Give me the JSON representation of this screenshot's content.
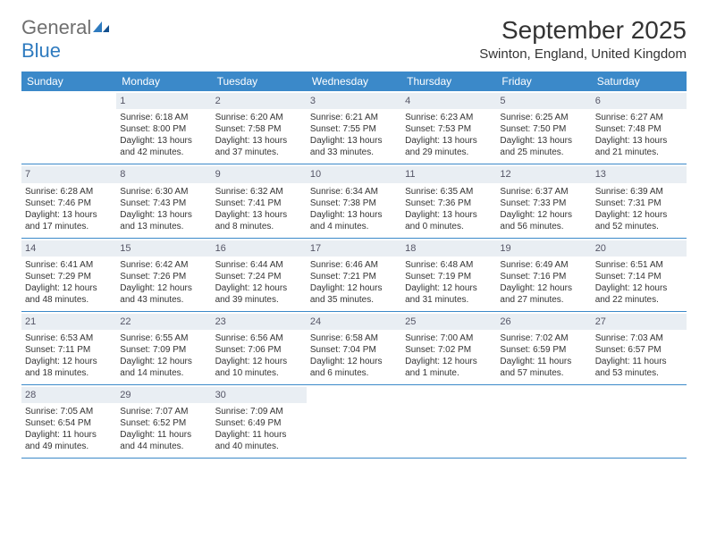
{
  "logo": {
    "general": "General",
    "blue": "Blue"
  },
  "title": "September 2025",
  "location": "Swinton, England, United Kingdom",
  "colors": {
    "header_bg": "#3b89c9",
    "header_text": "#ffffff",
    "daynum_bg": "#e9eef3",
    "body_text": "#333333",
    "logo_gray": "#6f6f6f",
    "logo_blue": "#2f7bbf",
    "border": "#3b89c9"
  },
  "day_headers": [
    "Sunday",
    "Monday",
    "Tuesday",
    "Wednesday",
    "Thursday",
    "Friday",
    "Saturday"
  ],
  "weeks": [
    [
      {
        "empty": true
      },
      {
        "num": "1",
        "sunrise": "Sunrise: 6:18 AM",
        "sunset": "Sunset: 8:00 PM",
        "daylight1": "Daylight: 13 hours",
        "daylight2": "and 42 minutes."
      },
      {
        "num": "2",
        "sunrise": "Sunrise: 6:20 AM",
        "sunset": "Sunset: 7:58 PM",
        "daylight1": "Daylight: 13 hours",
        "daylight2": "and 37 minutes."
      },
      {
        "num": "3",
        "sunrise": "Sunrise: 6:21 AM",
        "sunset": "Sunset: 7:55 PM",
        "daylight1": "Daylight: 13 hours",
        "daylight2": "and 33 minutes."
      },
      {
        "num": "4",
        "sunrise": "Sunrise: 6:23 AM",
        "sunset": "Sunset: 7:53 PM",
        "daylight1": "Daylight: 13 hours",
        "daylight2": "and 29 minutes."
      },
      {
        "num": "5",
        "sunrise": "Sunrise: 6:25 AM",
        "sunset": "Sunset: 7:50 PM",
        "daylight1": "Daylight: 13 hours",
        "daylight2": "and 25 minutes."
      },
      {
        "num": "6",
        "sunrise": "Sunrise: 6:27 AM",
        "sunset": "Sunset: 7:48 PM",
        "daylight1": "Daylight: 13 hours",
        "daylight2": "and 21 minutes."
      }
    ],
    [
      {
        "num": "7",
        "sunrise": "Sunrise: 6:28 AM",
        "sunset": "Sunset: 7:46 PM",
        "daylight1": "Daylight: 13 hours",
        "daylight2": "and 17 minutes."
      },
      {
        "num": "8",
        "sunrise": "Sunrise: 6:30 AM",
        "sunset": "Sunset: 7:43 PM",
        "daylight1": "Daylight: 13 hours",
        "daylight2": "and 13 minutes."
      },
      {
        "num": "9",
        "sunrise": "Sunrise: 6:32 AM",
        "sunset": "Sunset: 7:41 PM",
        "daylight1": "Daylight: 13 hours",
        "daylight2": "and 8 minutes."
      },
      {
        "num": "10",
        "sunrise": "Sunrise: 6:34 AM",
        "sunset": "Sunset: 7:38 PM",
        "daylight1": "Daylight: 13 hours",
        "daylight2": "and 4 minutes."
      },
      {
        "num": "11",
        "sunrise": "Sunrise: 6:35 AM",
        "sunset": "Sunset: 7:36 PM",
        "daylight1": "Daylight: 13 hours",
        "daylight2": "and 0 minutes."
      },
      {
        "num": "12",
        "sunrise": "Sunrise: 6:37 AM",
        "sunset": "Sunset: 7:33 PM",
        "daylight1": "Daylight: 12 hours",
        "daylight2": "and 56 minutes."
      },
      {
        "num": "13",
        "sunrise": "Sunrise: 6:39 AM",
        "sunset": "Sunset: 7:31 PM",
        "daylight1": "Daylight: 12 hours",
        "daylight2": "and 52 minutes."
      }
    ],
    [
      {
        "num": "14",
        "sunrise": "Sunrise: 6:41 AM",
        "sunset": "Sunset: 7:29 PM",
        "daylight1": "Daylight: 12 hours",
        "daylight2": "and 48 minutes."
      },
      {
        "num": "15",
        "sunrise": "Sunrise: 6:42 AM",
        "sunset": "Sunset: 7:26 PM",
        "daylight1": "Daylight: 12 hours",
        "daylight2": "and 43 minutes."
      },
      {
        "num": "16",
        "sunrise": "Sunrise: 6:44 AM",
        "sunset": "Sunset: 7:24 PM",
        "daylight1": "Daylight: 12 hours",
        "daylight2": "and 39 minutes."
      },
      {
        "num": "17",
        "sunrise": "Sunrise: 6:46 AM",
        "sunset": "Sunset: 7:21 PM",
        "daylight1": "Daylight: 12 hours",
        "daylight2": "and 35 minutes."
      },
      {
        "num": "18",
        "sunrise": "Sunrise: 6:48 AM",
        "sunset": "Sunset: 7:19 PM",
        "daylight1": "Daylight: 12 hours",
        "daylight2": "and 31 minutes."
      },
      {
        "num": "19",
        "sunrise": "Sunrise: 6:49 AM",
        "sunset": "Sunset: 7:16 PM",
        "daylight1": "Daylight: 12 hours",
        "daylight2": "and 27 minutes."
      },
      {
        "num": "20",
        "sunrise": "Sunrise: 6:51 AM",
        "sunset": "Sunset: 7:14 PM",
        "daylight1": "Daylight: 12 hours",
        "daylight2": "and 22 minutes."
      }
    ],
    [
      {
        "num": "21",
        "sunrise": "Sunrise: 6:53 AM",
        "sunset": "Sunset: 7:11 PM",
        "daylight1": "Daylight: 12 hours",
        "daylight2": "and 18 minutes."
      },
      {
        "num": "22",
        "sunrise": "Sunrise: 6:55 AM",
        "sunset": "Sunset: 7:09 PM",
        "daylight1": "Daylight: 12 hours",
        "daylight2": "and 14 minutes."
      },
      {
        "num": "23",
        "sunrise": "Sunrise: 6:56 AM",
        "sunset": "Sunset: 7:06 PM",
        "daylight1": "Daylight: 12 hours",
        "daylight2": "and 10 minutes."
      },
      {
        "num": "24",
        "sunrise": "Sunrise: 6:58 AM",
        "sunset": "Sunset: 7:04 PM",
        "daylight1": "Daylight: 12 hours",
        "daylight2": "and 6 minutes."
      },
      {
        "num": "25",
        "sunrise": "Sunrise: 7:00 AM",
        "sunset": "Sunset: 7:02 PM",
        "daylight1": "Daylight: 12 hours",
        "daylight2": "and 1 minute."
      },
      {
        "num": "26",
        "sunrise": "Sunrise: 7:02 AM",
        "sunset": "Sunset: 6:59 PM",
        "daylight1": "Daylight: 11 hours",
        "daylight2": "and 57 minutes."
      },
      {
        "num": "27",
        "sunrise": "Sunrise: 7:03 AM",
        "sunset": "Sunset: 6:57 PM",
        "daylight1": "Daylight: 11 hours",
        "daylight2": "and 53 minutes."
      }
    ],
    [
      {
        "num": "28",
        "sunrise": "Sunrise: 7:05 AM",
        "sunset": "Sunset: 6:54 PM",
        "daylight1": "Daylight: 11 hours",
        "daylight2": "and 49 minutes."
      },
      {
        "num": "29",
        "sunrise": "Sunrise: 7:07 AM",
        "sunset": "Sunset: 6:52 PM",
        "daylight1": "Daylight: 11 hours",
        "daylight2": "and 44 minutes."
      },
      {
        "num": "30",
        "sunrise": "Sunrise: 7:09 AM",
        "sunset": "Sunset: 6:49 PM",
        "daylight1": "Daylight: 11 hours",
        "daylight2": "and 40 minutes."
      },
      {
        "empty": true
      },
      {
        "empty": true
      },
      {
        "empty": true
      },
      {
        "empty": true
      }
    ]
  ]
}
